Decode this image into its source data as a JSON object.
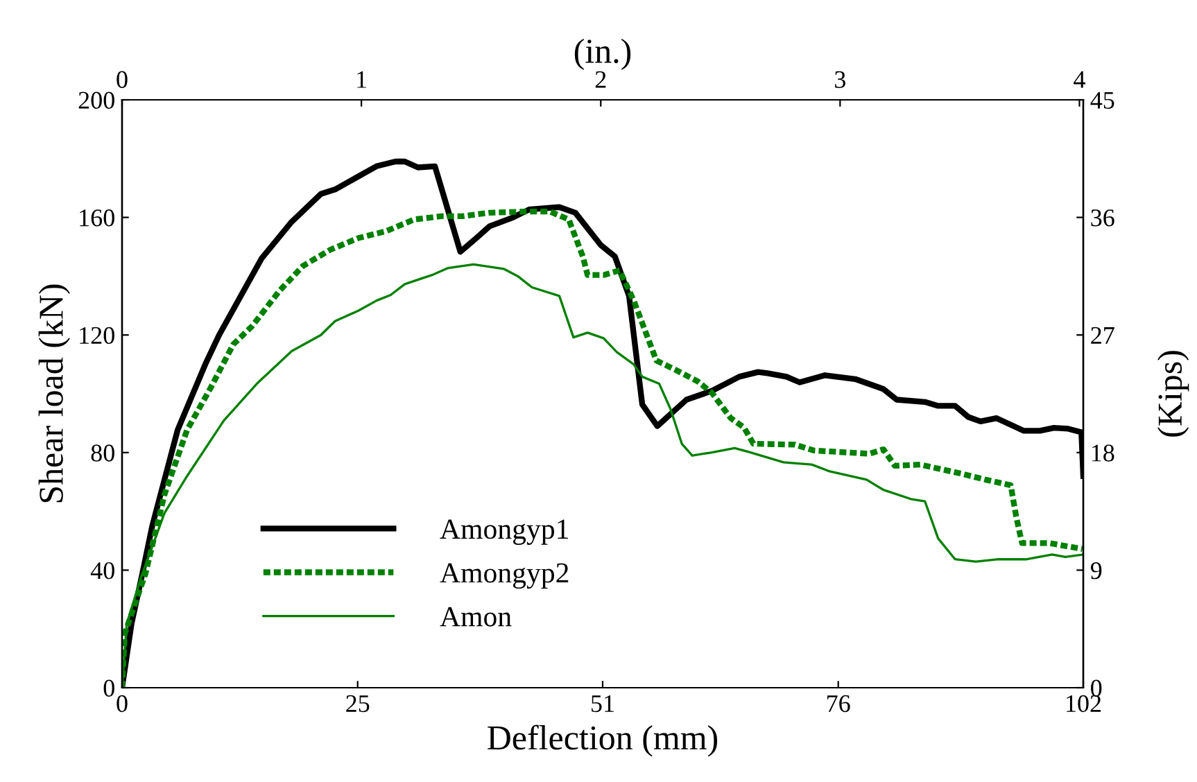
{
  "chart_data": {
    "type": "line",
    "xlabel": "Deflection (mm)",
    "ylabel": "Shear load (kN)",
    "y2label": "(Kips)",
    "x2label": "(in.)",
    "xlim": [
      0,
      102
    ],
    "xticks": [
      0,
      25,
      51,
      76,
      102
    ],
    "ylim": [
      0,
      200
    ],
    "yticks": [
      0,
      40,
      80,
      120,
      160,
      200
    ],
    "x2lim": [
      0,
      4.016
    ],
    "x2ticks": [
      0,
      1,
      2,
      3,
      4
    ],
    "y2lim": [
      0,
      45
    ],
    "y2ticks": [
      0,
      9,
      18,
      27,
      36,
      45
    ],
    "grid": false,
    "legend": "bottom left",
    "marker": "none",
    "series": [
      {
        "name": "Amongyp1",
        "color": "#000000",
        "line_style": "solid",
        "x": [
          0,
          1.0,
          2.1,
          3.2,
          5.9,
          8.9,
          10.3,
          14.8,
          18,
          21.1,
          22.6,
          27,
          29,
          30,
          31.4,
          33.2,
          35.9,
          37.6,
          39,
          41.5,
          43.2,
          46.4,
          48.1,
          50.8,
          52.3,
          53.8,
          55.2,
          56.8,
          59.9,
          62.6,
          65.5,
          67.5,
          68.5,
          70.5,
          71.9,
          74.6,
          77.8,
          80.8,
          82.2,
          85.2,
          86.6,
          88.4,
          89.8,
          91.1,
          92.8,
          95.7,
          97.4,
          98.9,
          100.4,
          101.8,
          102
        ],
        "values": [
          0,
          21.7,
          38,
          55,
          87.7,
          110.5,
          120,
          146,
          158.5,
          168,
          169.5,
          177.4,
          179,
          179,
          177,
          177.4,
          148.3,
          153,
          157,
          160,
          162.7,
          163.5,
          161.6,
          150.6,
          146.7,
          133.3,
          96.4,
          89,
          98,
          101,
          105.8,
          107.4,
          107,
          105.8,
          103.9,
          106.3,
          105,
          101.6,
          98,
          97.2,
          95.9,
          95.9,
          92.1,
          90.6,
          91.7,
          87.4,
          87.4,
          88.4,
          88.1,
          86.9,
          72
        ]
      },
      {
        "name": "Amongyp2",
        "color": "#008000",
        "line_style": "dotted",
        "x": [
          0,
          0.3,
          2.5,
          4.5,
          6.9,
          9.4,
          11.8,
          13.8,
          16.7,
          19.2,
          22.1,
          25.1,
          28,
          31,
          33.9,
          36.1,
          39,
          43,
          45.4,
          47.4,
          48.9,
          49.4,
          51.1,
          52.8,
          54.3,
          56.7,
          58.7,
          61.1,
          62.6,
          64.6,
          66,
          67,
          71.4,
          73.4,
          79.3,
          80.8,
          82,
          84.7,
          89.1,
          91.6,
          94.3,
          94.9,
          95.5,
          98.4,
          101.9
        ],
        "values": [
          0,
          18.5,
          39,
          65.7,
          87.7,
          102,
          116.8,
          123,
          135,
          143.5,
          149,
          153,
          155.3,
          159.3,
          160.4,
          160.4,
          161.6,
          162,
          162,
          159.3,
          146.7,
          140.4,
          140.4,
          142,
          131.7,
          111.3,
          108.2,
          104.2,
          100.3,
          91.7,
          88.5,
          83,
          82.7,
          80.7,
          79.6,
          81.1,
          75.5,
          75.9,
          72.8,
          70.8,
          68.9,
          57.9,
          49.2,
          49.2,
          47.2
        ]
      },
      {
        "name": "Amon",
        "color": "#008000",
        "line_style": "solid",
        "x": [
          0,
          0.5,
          2,
          4.5,
          6.9,
          10.8,
          14.3,
          18,
          21.1,
          22.6,
          25.1,
          27,
          28.5,
          30,
          32.9,
          34.6,
          37.3,
          40.5,
          42,
          43.5,
          46.4,
          47.9,
          49.4,
          51.1,
          52.5,
          54.3,
          55.2,
          57,
          58.2,
          59.4,
          60.5,
          62.5,
          65,
          66.5,
          70.2,
          73.2,
          75.1,
          79,
          80.8,
          83.7,
          85.2,
          86.6,
          88.4,
          90.6,
          93,
          96,
          98.7,
          100.1,
          102
        ],
        "values": [
          0,
          21.7,
          37.4,
          59.4,
          72,
          90.9,
          103.4,
          114.5,
          120,
          124.7,
          128.3,
          131.7,
          133.6,
          137.3,
          140.4,
          142.8,
          144,
          142.5,
          140,
          136.2,
          133.3,
          119.2,
          120.8,
          118.9,
          114.2,
          110,
          105.8,
          103.4,
          94.8,
          83,
          79,
          80,
          81.5,
          80.2,
          76.7,
          75.9,
          73.6,
          70.8,
          67.3,
          64.2,
          63.4,
          50.8,
          43.7,
          42.9,
          43.7,
          43.7,
          45.3,
          44.5,
          45.3
        ]
      }
    ]
  }
}
